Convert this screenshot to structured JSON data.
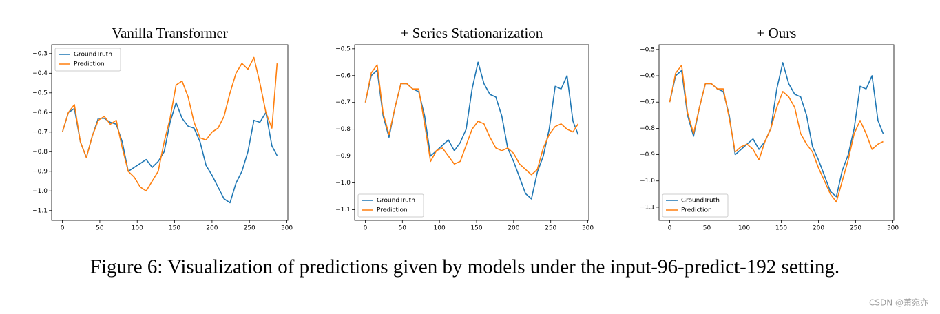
{
  "chart_data": [
    {
      "type": "line",
      "title": "Vanilla Transformer",
      "legend": "upper left",
      "x": [
        0,
        8,
        16,
        24,
        32,
        40,
        48,
        56,
        64,
        72,
        80,
        88,
        96,
        104,
        112,
        120,
        128,
        136,
        144,
        152,
        160,
        168,
        176,
        184,
        192,
        200,
        208,
        216,
        224,
        232,
        240,
        248,
        256,
        264,
        272,
        280,
        287
      ],
      "series": [
        {
          "name": "GroundTruth",
          "color": "#1f77b4",
          "values": [
            -0.7,
            -0.6,
            -0.58,
            -0.75,
            -0.83,
            -0.72,
            -0.63,
            -0.63,
            -0.65,
            -0.66,
            -0.75,
            -0.9,
            -0.88,
            -0.86,
            -0.84,
            -0.88,
            -0.85,
            -0.8,
            -0.65,
            -0.55,
            -0.63,
            -0.67,
            -0.68,
            -0.75,
            -0.87,
            -0.92,
            -0.98,
            -1.04,
            -1.06,
            -0.96,
            -0.9,
            -0.8,
            -0.64,
            -0.65,
            -0.6,
            -0.77,
            -0.82
          ]
        },
        {
          "name": "Prediction",
          "color": "#ff7f0e",
          "values": [
            -0.7,
            -0.6,
            -0.56,
            -0.75,
            -0.83,
            -0.72,
            -0.64,
            -0.62,
            -0.66,
            -0.64,
            -0.78,
            -0.9,
            -0.93,
            -0.98,
            -1.0,
            -0.95,
            -0.9,
            -0.75,
            -0.63,
            -0.46,
            -0.44,
            -0.52,
            -0.65,
            -0.73,
            -0.74,
            -0.7,
            -0.68,
            -0.62,
            -0.5,
            -0.4,
            -0.35,
            -0.38,
            -0.32,
            -0.45,
            -0.6,
            -0.68,
            -0.35
          ]
        }
      ],
      "xlim": [
        -14.35,
        301.35
      ],
      "xticks": [
        0,
        50,
        100,
        150,
        200,
        250,
        300
      ],
      "ylim": [
        -1.15,
        -0.255
      ],
      "yticks": [
        {
          "value": -1.1,
          "label": "−1.1"
        },
        {
          "value": -1.0,
          "label": "−1.0"
        },
        {
          "value": -0.9,
          "label": "−0.9"
        },
        {
          "value": -0.8,
          "label": "−0.8"
        },
        {
          "value": -0.7,
          "label": "−0.7"
        },
        {
          "value": -0.6,
          "label": "−0.6"
        },
        {
          "value": -0.5,
          "label": "−0.5"
        },
        {
          "value": -0.4,
          "label": "−0.4"
        },
        {
          "value": -0.3,
          "label": "−0.3"
        }
      ]
    },
    {
      "type": "line",
      "title": "+ Series Stationarization",
      "legend": "lower left",
      "x": [
        0,
        8,
        16,
        24,
        32,
        40,
        48,
        56,
        64,
        72,
        80,
        88,
        96,
        104,
        112,
        120,
        128,
        136,
        144,
        152,
        160,
        168,
        176,
        184,
        192,
        200,
        208,
        216,
        224,
        232,
        240,
        248,
        256,
        264,
        272,
        280,
        287
      ],
      "series": [
        {
          "name": "GroundTruth",
          "color": "#1f77b4",
          "values": [
            -0.7,
            -0.6,
            -0.58,
            -0.75,
            -0.83,
            -0.72,
            -0.63,
            -0.63,
            -0.65,
            -0.66,
            -0.75,
            -0.9,
            -0.88,
            -0.86,
            -0.84,
            -0.88,
            -0.85,
            -0.8,
            -0.65,
            -0.55,
            -0.63,
            -0.67,
            -0.68,
            -0.75,
            -0.87,
            -0.92,
            -0.98,
            -1.04,
            -1.06,
            -0.96,
            -0.9,
            -0.8,
            -0.64,
            -0.65,
            -0.6,
            -0.77,
            -0.82
          ]
        },
        {
          "name": "Prediction",
          "color": "#ff7f0e",
          "values": [
            -0.7,
            -0.59,
            -0.56,
            -0.74,
            -0.82,
            -0.72,
            -0.63,
            -0.63,
            -0.65,
            -0.65,
            -0.78,
            -0.92,
            -0.88,
            -0.87,
            -0.9,
            -0.93,
            -0.92,
            -0.86,
            -0.8,
            -0.77,
            -0.78,
            -0.83,
            -0.87,
            -0.88,
            -0.87,
            -0.89,
            -0.93,
            -0.95,
            -0.97,
            -0.95,
            -0.87,
            -0.82,
            -0.79,
            -0.78,
            -0.8,
            -0.81,
            -0.78
          ]
        }
      ],
      "xlim": [
        -14.35,
        301.35
      ],
      "xticks": [
        0,
        50,
        100,
        150,
        200,
        250,
        300
      ],
      "ylim": [
        -1.14,
        -0.485
      ],
      "yticks": [
        {
          "value": -1.1,
          "label": "−1.1"
        },
        {
          "value": -1.0,
          "label": "−1.0"
        },
        {
          "value": -0.9,
          "label": "−0.9"
        },
        {
          "value": -0.8,
          "label": "−0.8"
        },
        {
          "value": -0.7,
          "label": "−0.7"
        },
        {
          "value": -0.6,
          "label": "−0.6"
        },
        {
          "value": -0.5,
          "label": "−0.5"
        }
      ]
    },
    {
      "type": "line",
      "title": "+ Ours",
      "legend": "lower left",
      "x": [
        0,
        8,
        16,
        24,
        32,
        40,
        48,
        56,
        64,
        72,
        80,
        88,
        96,
        104,
        112,
        120,
        128,
        136,
        144,
        152,
        160,
        168,
        176,
        184,
        192,
        200,
        208,
        216,
        224,
        232,
        240,
        248,
        256,
        264,
        272,
        280,
        287
      ],
      "series": [
        {
          "name": "GroundTruth",
          "color": "#1f77b4",
          "values": [
            -0.7,
            -0.6,
            -0.58,
            -0.75,
            -0.83,
            -0.72,
            -0.63,
            -0.63,
            -0.65,
            -0.66,
            -0.75,
            -0.9,
            -0.88,
            -0.86,
            -0.84,
            -0.88,
            -0.85,
            -0.8,
            -0.65,
            -0.55,
            -0.63,
            -0.67,
            -0.68,
            -0.75,
            -0.87,
            -0.92,
            -0.98,
            -1.04,
            -1.06,
            -0.96,
            -0.9,
            -0.8,
            -0.64,
            -0.65,
            -0.6,
            -0.77,
            -0.82
          ]
        },
        {
          "name": "Prediction",
          "color": "#ff7f0e",
          "values": [
            -0.7,
            -0.59,
            -0.56,
            -0.74,
            -0.82,
            -0.72,
            -0.63,
            -0.63,
            -0.65,
            -0.65,
            -0.76,
            -0.89,
            -0.87,
            -0.86,
            -0.88,
            -0.92,
            -0.85,
            -0.8,
            -0.72,
            -0.66,
            -0.68,
            -0.72,
            -0.82,
            -0.86,
            -0.89,
            -0.95,
            -1.0,
            -1.05,
            -1.08,
            -1.0,
            -0.92,
            -0.82,
            -0.77,
            -0.82,
            -0.88,
            -0.86,
            -0.85
          ]
        }
      ],
      "xlim": [
        -14.35,
        301.35
      ],
      "xticks": [
        0,
        50,
        100,
        150,
        200,
        250,
        300
      ],
      "ylim": [
        -1.15,
        -0.482
      ],
      "yticks": [
        {
          "value": -1.1,
          "label": "−1.1"
        },
        {
          "value": -1.0,
          "label": "−1.0"
        },
        {
          "value": -0.9,
          "label": "−0.9"
        },
        {
          "value": -0.8,
          "label": "−0.8"
        },
        {
          "value": -0.7,
          "label": "−0.7"
        },
        {
          "value": -0.6,
          "label": "−0.6"
        },
        {
          "value": -0.5,
          "label": "−0.5"
        }
      ]
    }
  ],
  "caption": "Figure 6: Visualization of predictions given by models under the input-96-predict-192 setting.",
  "watermark": "CSDN @萧宛亦"
}
